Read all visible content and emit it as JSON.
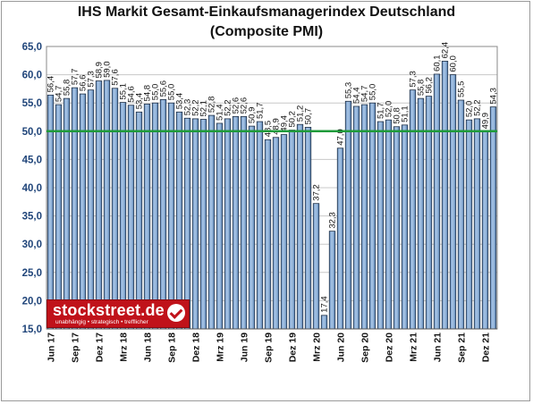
{
  "chart_data": {
    "type": "bar",
    "title": "IHS Markit Gesamt-Einkaufsmanagerindex Deutschland",
    "subtitle": "(Composite PMI)",
    "categories": [
      "Jun 17",
      "Jul 17",
      "Aug 17",
      "Sep 17",
      "Okt 17",
      "Nov 17",
      "Dez 17",
      "Jan 18",
      "Feb 18",
      "Mrz 18",
      "Apr 18",
      "Mai 18",
      "Jun 18",
      "Jul 18",
      "Aug 18",
      "Sep 18",
      "Okt 18",
      "Nov 18",
      "Dez 18",
      "Jan 19",
      "Feb 19",
      "Mrz 19",
      "Apr 19",
      "Mai 19",
      "Jun 19",
      "Jul 19",
      "Aug 19",
      "Sep 19",
      "Okt 19",
      "Nov 19",
      "Dez 19",
      "Jan 20",
      "Feb 20",
      "Mrz 20",
      "Apr 20",
      "Mai 20",
      "Jun 20",
      "Jul 20",
      "Aug 20",
      "Sep 20",
      "Okt 20",
      "Nov 20",
      "Dez 20",
      "Jan 21",
      "Feb 21",
      "Mrz 21",
      "Apr 21",
      "Mai 21",
      "Jun 21",
      "Jul 21",
      "Aug 21",
      "Sep 21",
      "Okt 21",
      "Nov 21",
      "Dez 21",
      "Jan 22"
    ],
    "x_tick_labels": [
      "Jun 17",
      "",
      "",
      "Sep 17",
      "",
      "",
      "Dez 17",
      "",
      "",
      "Mrz 18",
      "",
      "",
      "Jun 18",
      "",
      "",
      "Sep 18",
      "",
      "",
      "Dez 18",
      "",
      "",
      "Mrz 19",
      "",
      "",
      "Jun 19",
      "",
      "",
      "Sep 19",
      "",
      "",
      "Dez 19",
      "",
      "",
      "Mrz 20",
      "",
      "",
      "Jun 20",
      "",
      "",
      "Sep 20",
      "",
      "",
      "Dez 20",
      "",
      "",
      "Mrz 21",
      "",
      "",
      "Jun 21",
      "",
      "",
      "Sep 21",
      "",
      "",
      "Dez 21",
      ""
    ],
    "values": [
      56.4,
      54.7,
      55.8,
      57.7,
      56.6,
      57.3,
      58.9,
      59.0,
      57.6,
      55.1,
      54.6,
      53.4,
      54.8,
      55.0,
      55.6,
      55.0,
      53.4,
      52.3,
      52.2,
      52.1,
      52.8,
      51.4,
      52.2,
      52.6,
      52.6,
      50.9,
      51.7,
      48.5,
      48.9,
      49.4,
      50.2,
      51.2,
      50.7,
      37.2,
      17.4,
      32.3,
      47.0,
      55.3,
      54.4,
      54.7,
      55.0,
      51.7,
      52.0,
      50.8,
      51.1,
      57.3,
      55.8,
      56.2,
      60.1,
      62.4,
      60.0,
      55.5,
      52.0,
      52.2,
      49.9,
      54.3
    ],
    "data_labels": [
      "56,4",
      "54,7",
      "55,8",
      "57,7",
      "56,6",
      "57,3",
      "58,9",
      "59,0",
      "57,6",
      "55,1",
      "54,6",
      "53,4",
      "54,8",
      "55,0",
      "55,6",
      "55,0",
      "53,4",
      "52,3",
      "52,2",
      "52,1",
      "52,8",
      "51,4",
      "52,2",
      "52,6",
      "52,6",
      "50,9",
      "51,7",
      "48,5",
      "48,9",
      "49,4",
      "50,2",
      "51,2",
      "50,7",
      "37,2",
      "17,4",
      "32,3",
      "47,0",
      "55,3",
      "54,4",
      "54,7",
      "55,0",
      "51,7",
      "52,0",
      "50,8",
      "51,1",
      "57,3",
      "55,8",
      "56,2",
      "60,1",
      "62,4",
      "60,0",
      "55,5",
      "52,0",
      "52,2",
      "49,9",
      "54,3"
    ],
    "y_ticks": [
      "15,0",
      "20,0",
      "25,0",
      "30,0",
      "35,0",
      "40,0",
      "45,0",
      "50,0",
      "55,0",
      "60,0",
      "65,0"
    ],
    "ylim": [
      15,
      65
    ],
    "reference_line": 50,
    "grid": true,
    "colors": {
      "bar_fill": "#a9c6e6",
      "bar_edge": "#1f2f45",
      "reference": "#1f9a3a",
      "grid": "#c8c8c8",
      "axis_text": "#20457a"
    }
  },
  "branding": {
    "logo_text": "stockstreet.de",
    "tagline": "unabhängig • strategisch • trefflicher"
  }
}
